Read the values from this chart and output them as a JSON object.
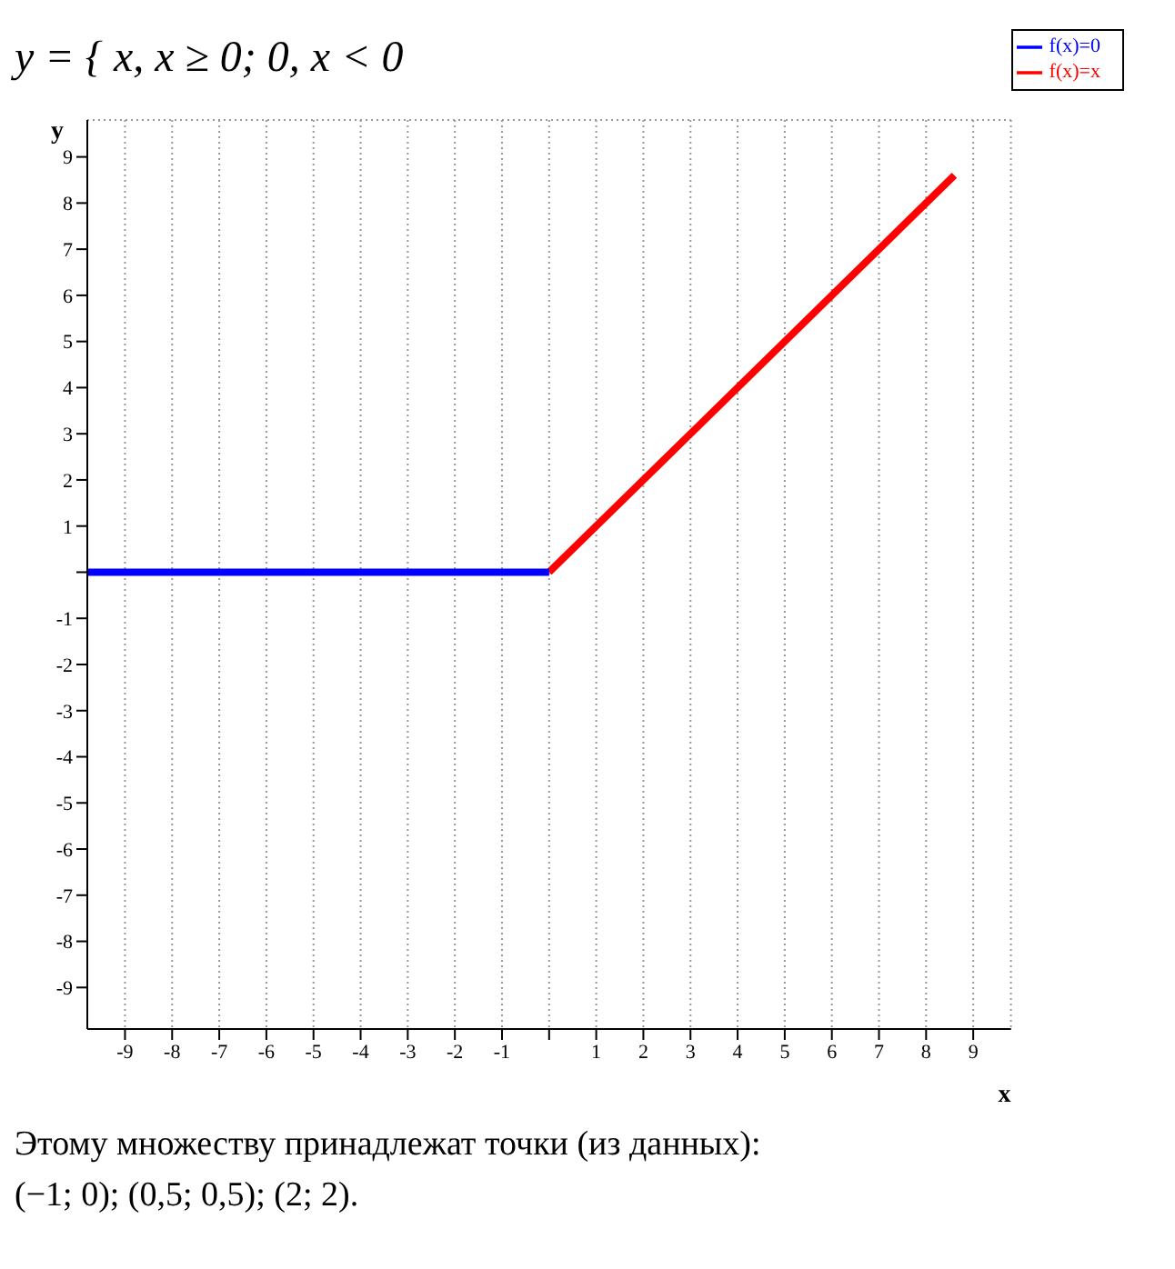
{
  "chart_data": {
    "type": "line",
    "title": "y = { x,   x ≥ 0;   0,   x < 0",
    "xlabel": "x",
    "ylabel": "y",
    "xlim": [
      -9.8,
      9.8
    ],
    "ylim": [
      -9.9,
      9.8
    ],
    "xticks": [
      -9,
      -8,
      -7,
      -6,
      -5,
      -4,
      -3,
      -2,
      -1,
      {
        "value": 0,
        "label": null
      },
      1,
      2,
      3,
      4,
      5,
      6,
      7,
      8,
      9
    ],
    "yticks": [
      -9,
      -8,
      -7,
      -6,
      -5,
      -4,
      -3,
      -2,
      -1,
      {
        "value": 0,
        "label": null
      },
      1,
      2,
      3,
      4,
      5,
      6,
      7,
      8,
      9
    ],
    "grid": true,
    "legend": "top right",
    "marker": "none",
    "line_style": "solid",
    "series": [
      {
        "name": "f(x)=x",
        "color": "#ff0000",
        "x": [
          0,
          8.6
        ],
        "values": [
          0,
          8.6
        ]
      },
      {
        "name": "f(x)=0",
        "color": "#0000ff",
        "x": [
          -9.8,
          0
        ],
        "values": [
          0,
          0
        ]
      }
    ],
    "annotations": [
      "Этому множеству принадлежат точки (из данных):",
      "(−1; 0);   (0,5; 0,5);   (2; 2)."
    ]
  }
}
